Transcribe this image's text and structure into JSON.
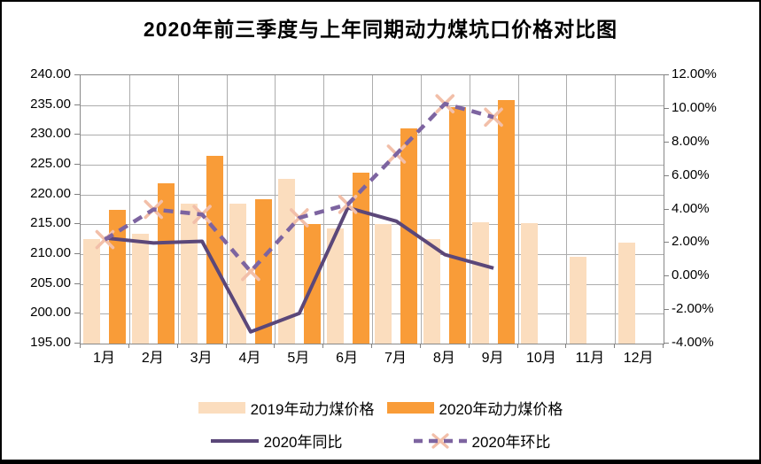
{
  "title": "2020年前三季度与上年同期动力煤坑口价格对比图",
  "chart_data": {
    "type": "bar+line combo",
    "title": "2020年前三季度与上年同期动力煤坑口价格对比图",
    "categories": [
      "1月",
      "2月",
      "3月",
      "4月",
      "5月",
      "6月",
      "7月",
      "8月",
      "9月",
      "10月",
      "11月",
      "12月"
    ],
    "series": [
      {
        "name": "2019年动力煤价格",
        "type": "bar",
        "axis": "left",
        "color": "#FBDDBE",
        "values": [
          212.6,
          213.4,
          218.4,
          218.5,
          222.6,
          214.3,
          215.1,
          212.5,
          215.4,
          215.2,
          209.6,
          212.0
        ]
      },
      {
        "name": "2020年动力煤价格",
        "type": "bar",
        "axis": "left",
        "color": "#F99C38",
        "values": [
          217.5,
          221.9,
          226.5,
          219.2,
          215.0,
          223.6,
          231.1,
          234.7,
          235.8,
          null,
          null,
          null
        ]
      },
      {
        "name": "2020年同比",
        "type": "line",
        "line_style": "solid",
        "axis": "right",
        "color": "#5B4779",
        "values": [
          2.3,
          2.0,
          2.1,
          -3.3,
          -2.2,
          4.1,
          3.3,
          1.3,
          0.5,
          null,
          null,
          null
        ]
      },
      {
        "name": "2020年环比",
        "type": "line",
        "line_style": "dashed",
        "marker": "x",
        "marker_color": "#F2BFA9",
        "axis": "right",
        "color": "#7D64A0",
        "values": [
          2.2,
          4.0,
          3.7,
          0.3,
          3.5,
          4.3,
          7.3,
          10.3,
          9.5,
          null,
          null,
          null
        ]
      }
    ],
    "axis_left": {
      "min": 195,
      "max": 240,
      "tick_labels": [
        "240.00",
        "235.00",
        "230.00",
        "225.00",
        "220.00",
        "215.00",
        "210.00",
        "205.00",
        "200.00",
        "195.00"
      ]
    },
    "axis_right": {
      "min": -4,
      "max": 12,
      "tick_labels": [
        "12.00%",
        "10.00%",
        "8.00%",
        "6.00%",
        "4.00%",
        "2.00%",
        "0.00%",
        "-2.00%",
        "-4.00%"
      ]
    },
    "grid": {
      "horizontal": true,
      "vertical": true
    },
    "legend_position": "bottom",
    "colors": {
      "grid": "#ADADAD",
      "plot_border": "#898989",
      "axis_tick": "#808080"
    }
  }
}
